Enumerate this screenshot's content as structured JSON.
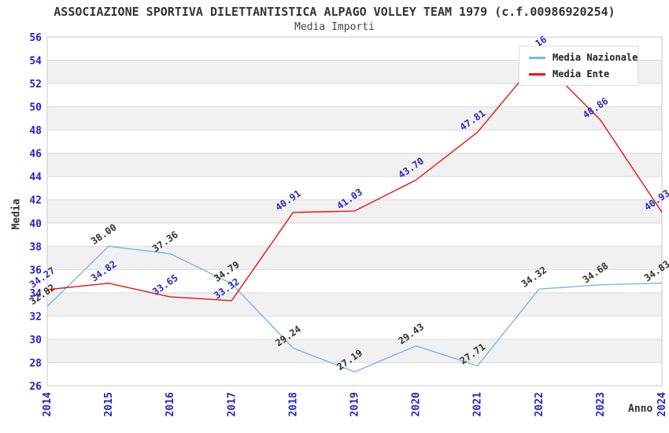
{
  "header": {
    "title": "ASSOCIAZIONE SPORTIVA DILETTANTISTICA ALPAGO VOLLEY TEAM 1979 (c.f.00986920254)",
    "subtitle": "Media Importi"
  },
  "axes": {
    "y_title": "Media",
    "x_title": "Anno"
  },
  "legend": {
    "items": [
      {
        "label": "Media Nazionale",
        "color": "#7EB3E8"
      },
      {
        "label": "Media Ente",
        "color": "#EE1111"
      }
    ]
  },
  "colors": {
    "tick_label": "#2222CC",
    "gridline": "#DBDBDB",
    "band_gray": "#F1F1F1",
    "plot_border": "#C8C8C8",
    "nazionale_label": "#333333",
    "ente_label": "#2B2BBE"
  },
  "chart_data": {
    "type": "line",
    "title": "ASSOCIAZIONE SPORTIVA DILETTANTISTICA ALPAGO VOLLEY TEAM 1979 (c.f.00986920254)",
    "subtitle": "Media Importi",
    "xlabel": "Anno",
    "ylabel": "Media",
    "x": [
      2014,
      2015,
      2016,
      2017,
      2018,
      2019,
      2020,
      2021,
      2022,
      2023,
      2024
    ],
    "series": [
      {
        "name": "Media Nazionale",
        "color": "#7EB3E8",
        "label_color": "#333333",
        "values": [
          32.82,
          38.0,
          37.36,
          34.79,
          29.24,
          27.19,
          29.43,
          27.71,
          34.32,
          34.68,
          34.83
        ]
      },
      {
        "name": "Media Ente",
        "color": "#EE1111",
        "label_color": "#2B2BBE",
        "values": [
          34.27,
          34.82,
          33.65,
          33.32,
          40.91,
          41.03,
          43.7,
          47.81,
          54.16,
          48.86,
          40.93
        ]
      }
    ],
    "ylim": [
      26,
      56
    ],
    "ytick_step": 2,
    "grid": true,
    "alternating_bands": true,
    "legend_position": "top-right",
    "point_label_decimals": 2,
    "note": "2022 Media Ente label partially hidden behind legend; only .16 visible"
  }
}
